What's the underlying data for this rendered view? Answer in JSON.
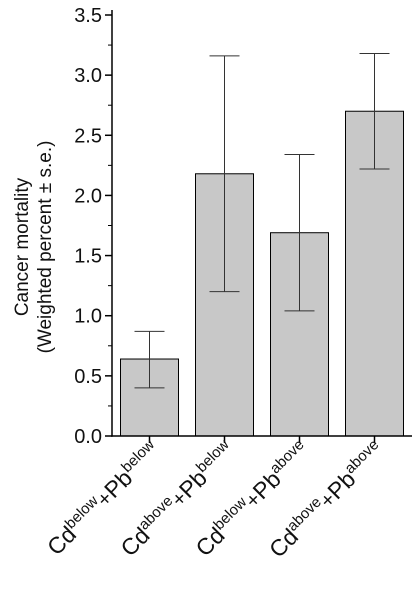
{
  "chart_data": {
    "type": "bar",
    "title": "",
    "xlabel": "",
    "ylabel": [
      "Cancer mortality",
      "(Weighted percent ± s.e.)"
    ],
    "ylim": [
      0.0,
      3.5
    ],
    "yticks": [
      "0.0",
      "0.5",
      "1.0",
      "1.5",
      "2.0",
      "2.5",
      "3.0",
      "3.5"
    ],
    "categories": [
      {
        "cd": "Cd",
        "cd_sup": "below",
        "plus": "+",
        "pb": "Pb",
        "pb_sup": "below"
      },
      {
        "cd": "Cd",
        "cd_sup": "above",
        "plus": "+",
        "pb": "Pb",
        "pb_sup": "below"
      },
      {
        "cd": "Cd",
        "cd_sup": "below",
        "plus": "+",
        "pb": "Pb",
        "pb_sup": "above"
      },
      {
        "cd": "Cd",
        "cd_sup": "above",
        "plus": "+",
        "pb": "Pb",
        "pb_sup": "above"
      }
    ],
    "values": [
      0.64,
      2.18,
      1.69,
      2.7
    ],
    "error_low": [
      0.4,
      1.2,
      1.04,
      2.22
    ],
    "error_high": [
      0.87,
      3.16,
      2.34,
      3.18
    ],
    "bar_color": "#c8c8c8",
    "grid": false,
    "legend": "none"
  }
}
